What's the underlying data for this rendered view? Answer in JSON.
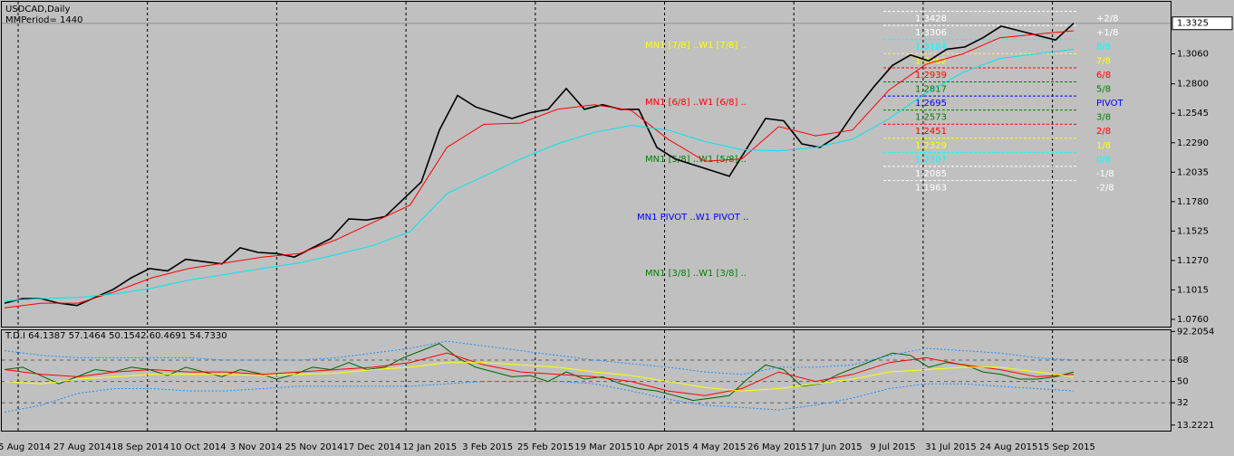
{
  "chart_data": [
    {
      "type": "line",
      "title": "USDCAD,Daily",
      "subtitle": "MMPeriod= 1440",
      "ylim": [
        1.0697,
        1.3511
      ],
      "yticks": [
        {
          "value": 1.306,
          "label": "1.3060"
        },
        {
          "value": 1.28,
          "label": "1.2800"
        },
        1.2545,
        {
          "value": 1.229,
          "label": "1.2290"
        },
        1.2035,
        {
          "value": 1.178,
          "label": "1.1780"
        },
        1.1525,
        {
          "value": 1.127,
          "label": "1.1270"
        },
        1.1015,
        {
          "value": 1.076,
          "label": "1.0760"
        }
      ],
      "current_price": 1.3325,
      "series": [
        {
          "name": "USDCAD",
          "color": "#000000",
          "values": [
            1.09,
            1.094,
            1.094,
            1.09,
            1.088,
            1.095,
            1.102,
            1.112,
            1.12,
            1.118,
            1.128,
            1.126,
            1.124,
            1.138,
            1.134,
            1.133,
            1.13,
            1.138,
            1.146,
            1.163,
            1.162,
            1.165,
            1.18,
            1.195,
            1.24,
            1.27,
            1.26,
            1.255,
            1.25,
            1.255,
            1.258,
            1.276,
            1.258,
            1.262,
            1.258,
            1.258,
            1.225,
            1.215,
            1.21,
            1.205,
            1.2,
            1.225,
            1.25,
            1.248,
            1.228,
            1.225,
            1.235,
            1.258,
            1.278,
            1.296,
            1.305,
            1.3,
            1.31,
            1.312,
            1.32,
            1.33,
            1.326,
            1.322,
            1.318,
            1.3325
          ]
        },
        {
          "color": "#ff0000",
          "values": [
            1.086,
            1.09,
            1.09,
            1.1,
            1.112,
            1.12,
            1.125,
            1.13,
            1.133,
            1.145,
            1.16,
            1.175,
            1.225,
            1.245,
            1.246,
            1.258,
            1.262,
            1.257,
            1.232,
            1.213,
            1.215,
            1.243,
            1.235,
            1.24,
            1.275,
            1.297,
            1.306,
            1.32,
            1.323,
            1.326
          ]
        },
        {
          "color": "#00e5ee",
          "values": [
            1.092,
            1.094,
            1.095,
            1.098,
            1.103,
            1.11,
            1.115,
            1.12,
            1.125,
            1.132,
            1.14,
            1.152,
            1.185,
            1.2,
            1.215,
            1.228,
            1.238,
            1.244,
            1.24,
            1.23,
            1.223,
            1.222,
            1.225,
            1.232,
            1.25,
            1.272,
            1.29,
            1.302,
            1.306,
            1.31
          ]
        }
      ],
      "murrey_levels": [
        {
          "price": 1.3428,
          "name": "+2/8",
          "color": "#ffffff"
        },
        {
          "price": 1.3306,
          "name": "+1/8",
          "color": "#ffffff"
        },
        {
          "price": 1.3184,
          "name": "8/8",
          "color": "#00ffff"
        },
        {
          "price": 1.3062,
          "name": "7/8",
          "color": "#ffff00"
        },
        {
          "price": 1.2939,
          "name": "6/8",
          "color": "#ff0000"
        },
        {
          "price": 1.2817,
          "name": "5/8",
          "color": "#008000"
        },
        {
          "price": 1.2695,
          "name": "PIVOT",
          "color": "#0000ff"
        },
        {
          "price": 1.2573,
          "name": "3/8",
          "color": "#008000"
        },
        {
          "price": 1.2451,
          "name": "2/8",
          "color": "#ff0000"
        },
        {
          "price": 1.2329,
          "name": "1/8",
          "color": "#ffff00"
        },
        {
          "price": 1.2207,
          "name": "0/8",
          "color": "#00ffff"
        },
        {
          "price": 1.2085,
          "name": "-1/8",
          "color": "#ffffff"
        },
        {
          "price": 1.1963,
          "name": "-2/8",
          "color": "#ffffff"
        }
      ],
      "annotations": [
        {
          "text": "MN1 [7/8] ..W1 [7/8] ..",
          "color": "#ffff00"
        },
        {
          "text": "MN1 [6/8] ..W1 [6/8] ..",
          "color": "#ff0000"
        },
        {
          "text": "MN1 [5/8] ..W1 [5/8] ..",
          "color": "#008000"
        },
        {
          "text": "MN1 PIVOT ..W1 PIVOT ..",
          "color": "#0000ff"
        },
        {
          "text": "MN1 [3/8] ..W1 [3/8] ..",
          "color": "#008000"
        }
      ]
    },
    {
      "type": "line",
      "title": "T.D.I 64.1387 57.1464 50.1542 60.4691 54.7330",
      "ylim": [
        10,
        94
      ],
      "yticks": [
        92.2054,
        68,
        50,
        32,
        13.2221
      ],
      "levels": [
        68,
        50,
        32
      ],
      "series": [
        {
          "color": "#006400",
          "values": [
            60,
            62,
            55,
            48,
            54,
            60,
            58,
            62,
            60,
            55,
            62,
            58,
            54,
            60,
            57,
            52,
            56,
            62,
            60,
            66,
            60,
            62,
            70,
            76,
            82,
            70,
            62,
            58,
            54,
            55,
            50,
            58,
            52,
            54,
            48,
            44,
            42,
            38,
            34,
            36,
            38,
            52,
            64,
            60,
            46,
            48,
            56,
            62,
            68,
            74,
            72,
            62,
            66,
            64,
            58,
            56,
            52,
            52,
            54,
            58
          ]
        },
        {
          "color": "#ff0000",
          "values": [
            60,
            56,
            54,
            58,
            60,
            58,
            58,
            56,
            58,
            60,
            62,
            66,
            74,
            64,
            58,
            56,
            54,
            50,
            42,
            38,
            44,
            58,
            50,
            56,
            66,
            70,
            64,
            60,
            54,
            56
          ]
        },
        {
          "color": "#ffff00",
          "values": [
            50,
            48,
            52,
            54,
            56,
            56,
            56,
            55,
            56,
            57,
            60,
            62,
            66,
            66,
            64,
            62,
            58,
            55,
            50,
            45,
            42,
            44,
            48,
            52,
            58,
            60,
            62,
            62,
            58,
            54
          ]
        },
        {
          "color": "#1e90ff",
          "values": [
            76,
            72,
            70,
            70,
            70,
            70,
            68,
            68,
            68,
            70,
            74,
            78,
            84,
            80,
            76,
            72,
            68,
            65,
            62,
            58,
            56,
            62,
            62,
            64,
            72,
            78,
            76,
            74,
            70,
            68
          ]
        },
        {
          "color": "#1e90ff",
          "values": [
            24,
            30,
            40,
            44,
            44,
            42,
            42,
            44,
            46,
            46,
            46,
            46,
            48,
            50,
            50,
            50,
            48,
            42,
            35,
            30,
            28,
            26,
            30,
            36,
            44,
            48,
            48,
            46,
            44,
            42
          ]
        }
      ]
    }
  ],
  "date_axis": [
    "5 Aug 2014",
    "27 Aug 2014",
    "18 Sep 2014",
    "10 Oct 2014",
    "3 Nov 2014",
    "25 Nov 2014",
    "17 Dec 2014",
    "12 Jan 2015",
    "3 Feb 2015",
    "25 Feb 2015",
    "19 Mar 2015",
    "10 Apr 2015",
    "4 May 2015",
    "26 May 2015",
    "17 Jun 2015",
    "9 Jul 2015",
    "31 Jul 2015",
    "24 Aug 2015",
    "15 Sep 2015"
  ]
}
